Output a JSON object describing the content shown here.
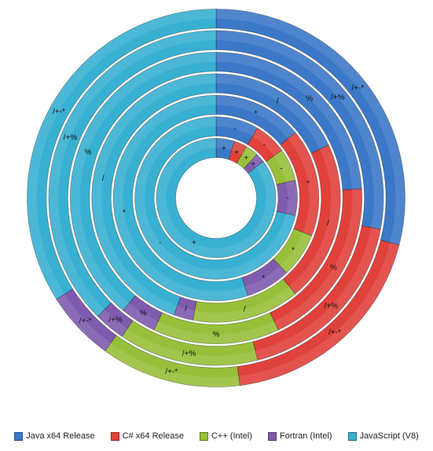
{
  "chart_data": {
    "type": "doughnut",
    "title": "",
    "rings_inner_to_outer": [
      "+",
      "-",
      "*",
      "/",
      "%",
      "/+%",
      "/+-*"
    ],
    "series": [
      {
        "name": "Java x64 Release",
        "color": "#3b78c8",
        "values": [
          5.0,
          8.5,
          14.0,
          18.0,
          24.0,
          28.0,
          29.0
        ]
      },
      {
        "name": "C# x64 Release",
        "color": "#e0413b",
        "values": [
          3.5,
          6.5,
          17.0,
          21.0,
          19.0,
          18.0,
          19.0
        ]
      },
      {
        "name": "C++ (Intel)",
        "color": "#98bf3a",
        "values": [
          3.5,
          6.5,
          7.0,
          14.0,
          14.0,
          13.5,
          12.0
        ]
      },
      {
        "name": "Fortran (Intel)",
        "color": "#7f5bae",
        "values": [
          2.5,
          7.0,
          7.0,
          2.5,
          4.0,
          3.0,
          6.0
        ]
      },
      {
        "name": "JavaScript (V8)",
        "color": "#38b0d2",
        "values": [
          85.5,
          71.5,
          55.0,
          44.5,
          39.0,
          37.5,
          34.0
        ]
      }
    ],
    "labels": {
      "Java x64 Release": [
        "+",
        "-",
        "*",
        "/",
        "%",
        "/+%",
        "/+-*"
      ],
      "C# x64 Release": [
        "+",
        "-",
        "*",
        "/",
        "%",
        "/+%",
        "/+-*"
      ],
      "C++ (Intel)": [
        "+",
        "-",
        "*",
        "/",
        "%",
        "/+%",
        "/+-*"
      ],
      "Fortran (Intel)": [
        "+",
        "-",
        "*",
        "/",
        "%",
        "/+%",
        "/+-*"
      ],
      "JavaScript (V8)": [
        "+",
        "-",
        "*",
        "/",
        "%",
        "/+%",
        "/+-*"
      ]
    },
    "legend_position": "bottom"
  }
}
